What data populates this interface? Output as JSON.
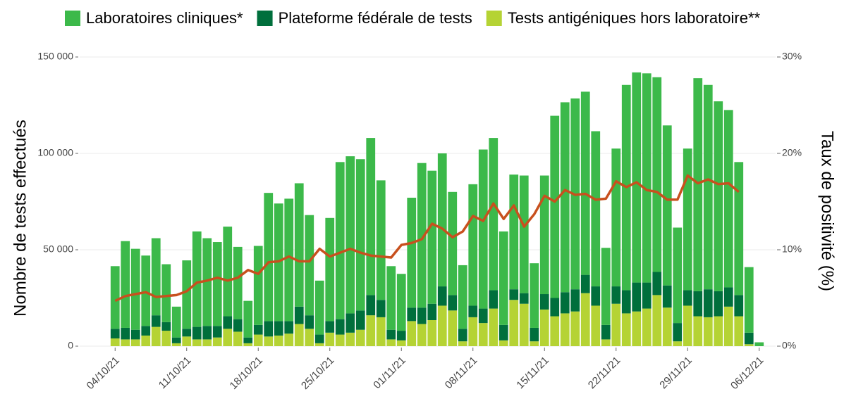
{
  "chart_data": {
    "type": "bar",
    "categories": [
      "04/10/21",
      null,
      null,
      null,
      null,
      null,
      null,
      "11/10/21",
      null,
      null,
      null,
      null,
      null,
      null,
      "18/10/21",
      null,
      null,
      null,
      null,
      null,
      null,
      "25/10/21",
      null,
      null,
      null,
      null,
      null,
      null,
      "01/11/21",
      null,
      null,
      null,
      null,
      null,
      null,
      "08/11/21",
      null,
      null,
      null,
      null,
      null,
      null,
      "15/11/21",
      null,
      null,
      null,
      null,
      null,
      null,
      "22/11/21",
      null,
      null,
      null,
      null,
      null,
      null,
      "29/11/21",
      null,
      null,
      null,
      null,
      null,
      null,
      "06/12/21"
    ],
    "series": [
      {
        "name": "Laboratoires cliniques*",
        "color": "#3cb94a",
        "values": [
          32500,
          45000,
          42000,
          36500,
          40000,
          30000,
          16000,
          35500,
          49500,
          45500,
          43500,
          46500,
          37500,
          19000,
          41000,
          66500,
          61000,
          63500,
          64000,
          52000,
          28000,
          53500,
          81500,
          81500,
          78500,
          81500,
          62000,
          33000,
          29500,
          57000,
          75000,
          69000,
          69000,
          53500,
          33000,
          63000,
          82500,
          79000,
          48500,
          59500,
          61000,
          33500,
          61500,
          94500,
          98500,
          99000,
          95000,
          80500,
          40000,
          71500,
          106500,
          109000,
          108500,
          101000,
          83000,
          49500,
          73500,
          110500,
          106000,
          98500,
          92000,
          69000,
          34000,
          2000
        ]
      },
      {
        "name": "Plateforme fédérale de tests",
        "color": "#006f3c",
        "values": [
          5000,
          6000,
          5000,
          5000,
          6000,
          4500,
          3000,
          4000,
          6500,
          7000,
          6000,
          6500,
          6500,
          3000,
          5000,
          8000,
          7500,
          6500,
          9000,
          7000,
          4500,
          6000,
          8000,
          10000,
          10000,
          10500,
          9000,
          5000,
          5000,
          7000,
          8500,
          8500,
          10000,
          8000,
          6500,
          6000,
          7500,
          9500,
          8000,
          5500,
          5500,
          7000,
          8000,
          9500,
          11000,
          11500,
          9500,
          10000,
          7500,
          9000,
          12000,
          15000,
          13500,
          12000,
          11500,
          9500,
          8000,
          13000,
          14500,
          13000,
          10000,
          11000,
          6000,
          0
        ]
      },
      {
        "name": "Tests antigéniques hors laboratoire**",
        "color": "#b5d334",
        "values": [
          4000,
          3500,
          3500,
          5500,
          10000,
          8000,
          1500,
          5000,
          3500,
          3500,
          4500,
          9000,
          7500,
          1500,
          6000,
          5000,
          5500,
          6500,
          11500,
          9000,
          1500,
          7000,
          6000,
          7000,
          8500,
          16000,
          15000,
          3500,
          3000,
          13000,
          11500,
          13500,
          21000,
          18500,
          2500,
          15000,
          12000,
          19500,
          3000,
          24000,
          22000,
          2500,
          19000,
          15500,
          17000,
          18000,
          27500,
          21000,
          3500,
          22000,
          17000,
          18000,
          19500,
          26500,
          20000,
          2500,
          21000,
          15500,
          15000,
          15500,
          20500,
          15500,
          1000,
          0
        ]
      },
      {
        "type": "line",
        "axis": "y2",
        "color": "#c8501e",
        "values": [
          4.7,
          5.2,
          5.4,
          5.6,
          5.1,
          5.2,
          5.3,
          5.7,
          6.6,
          6.8,
          7.1,
          6.8,
          7.1,
          7.9,
          7.5,
          8.7,
          8.8,
          9.3,
          8.8,
          8.8,
          10.1,
          9.3,
          9.7,
          10.1,
          9.7,
          9.4,
          9.3,
          9.2,
          10.5,
          10.7,
          11.1,
          12.7,
          12.2,
          11.3,
          11.9,
          13.5,
          13.0,
          14.8,
          13.2,
          14.6,
          12.4,
          13.7,
          15.6,
          15.0,
          16.2,
          15.7,
          15.8,
          15.2,
          15.3,
          17.1,
          16.5,
          17.0,
          16.2,
          16.0,
          15.2,
          15.2,
          17.7,
          16.9,
          17.3,
          16.8,
          16.9,
          16.0,
          null,
          null
        ]
      }
    ],
    "ylabel": "Nombre de tests effectués",
    "y2label": "Taux de positivité (%)",
    "ylim": [
      0,
      150000
    ],
    "yticks": [
      0,
      {
        "value": 50000,
        "label": "50 000"
      },
      {
        "value": 100000,
        "label": "100 000"
      },
      {
        "value": 150000,
        "label": "150 000"
      }
    ],
    "y2lim": [
      0,
      30
    ],
    "y2ticks": [
      {
        "value": 0,
        "label": "0%"
      },
      {
        "value": 10,
        "label": "10%"
      },
      {
        "value": 20,
        "label": "20%"
      },
      {
        "value": 30,
        "label": "30%"
      }
    ],
    "grid": true,
    "legend": "top"
  }
}
